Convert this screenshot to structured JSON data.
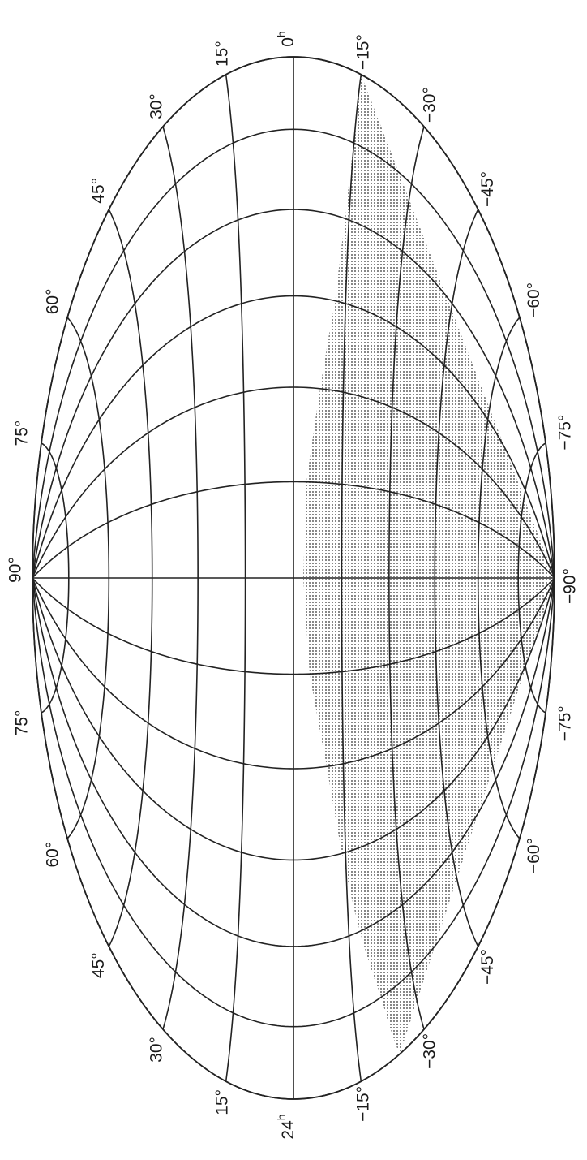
{
  "map": {
    "projection": "hammer-aitoff",
    "orientation": "rotated 90° counter-clockwise",
    "ra_range_hours": [
      0,
      24
    ],
    "dec_range_deg": [
      -90,
      90
    ],
    "meridian_step_hours": 2,
    "parallel_step_deg": 15,
    "line_color": "#222222",
    "coverage_dot_color": "#555555",
    "coverage_boundary": [
      {
        "ra_h": 0,
        "dec": -15
      },
      {
        "ra_h": 2,
        "dec": -15
      },
      {
        "ra_h": 4,
        "dec": -14
      },
      {
        "ra_h": 6,
        "dec": -12
      },
      {
        "ra_h": 8,
        "dec": -8
      },
      {
        "ra_h": 10,
        "dec": -4
      },
      {
        "ra_h": 12,
        "dec": -3
      },
      {
        "ra_h": 14,
        "dec": -5
      },
      {
        "ra_h": 16,
        "dec": -10
      },
      {
        "ra_h": 18,
        "dec": -14
      },
      {
        "ra_h": 20,
        "dec": -18
      },
      {
        "ra_h": 22,
        "dec": -22
      },
      {
        "ra_h": 24,
        "dec": -24
      }
    ]
  },
  "labels": {
    "ra_start": "0",
    "ra_start_unit": "h",
    "ra_end": "24",
    "ra_end_unit": "h",
    "north_pole": "90°",
    "south_pole": "−90°",
    "upper_right": [
      "15°",
      "30°",
      "45°",
      "60°",
      "75°"
    ],
    "upper_left": [
      "75°",
      "60°",
      "45°",
      "30°",
      "15°"
    ],
    "lower_right": [
      "−15°",
      "−30°",
      "−45°",
      "−60°",
      "−75°"
    ],
    "lower_left": [
      "−75°",
      "−60°",
      "−45°",
      "−30°",
      "−15°"
    ]
  }
}
